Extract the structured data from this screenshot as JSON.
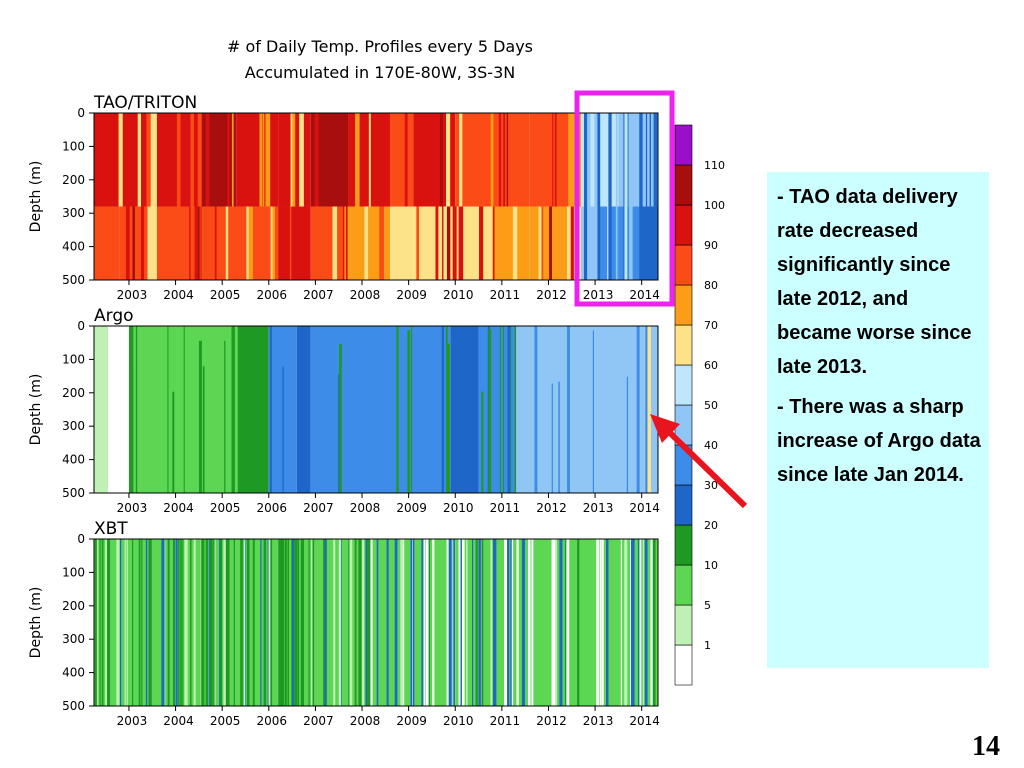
{
  "title_line1": "#  of Daily Temp. Profiles every 5 Days",
  "title_line2": "Accumulated in 170E-80W, 3S-3N",
  "notes": [
    "- TAO data delivery rate decreased significantly since late 2012, and became worse since late 2013.",
    "- There was a sharp increase of Argo data since late Jan 2014."
  ],
  "slide_number": "14",
  "colors": {
    "highlight_box": "#ee22ee",
    "arrow": "#e8141e",
    "note_background": "#ccffff"
  },
  "chart_data": [
    {
      "type": "heatmap",
      "title": "TAO/TRITON",
      "ylabel": "Depth (m)",
      "xlabel": "",
      "x_tick_labels": [
        "2003",
        "2004",
        "2005",
        "2006",
        "2007",
        "2008",
        "2009",
        "2010",
        "2011",
        "2012",
        "2013",
        "2014"
      ],
      "y_tick_labels": [
        "0",
        "100",
        "200",
        "300",
        "400",
        "500"
      ],
      "xlim": [
        2002.25,
        2014.35
      ],
      "ylim": [
        500,
        0
      ],
      "depth_break_m": 280,
      "segments_note": "approximate dominant profile-count bins (upper 0-280m / lower 280-500m) per period",
      "segments": [
        {
          "x0": 2002.25,
          "x1": 2002.8,
          "upper": 90,
          "lower": 80
        },
        {
          "x0": 2002.8,
          "x1": 2003.4,
          "upper": 90,
          "lower": 80
        },
        {
          "x0": 2003.4,
          "x1": 2003.6,
          "upper": 60,
          "lower": 60
        },
        {
          "x0": 2003.6,
          "x1": 2004.5,
          "upper": 90,
          "lower": 80
        },
        {
          "x0": 2004.5,
          "x1": 2005.3,
          "upper": 100,
          "lower": 80
        },
        {
          "x0": 2005.3,
          "x1": 2006.2,
          "upper": 90,
          "lower": 80
        },
        {
          "x0": 2006.2,
          "x1": 2006.9,
          "upper": 90,
          "lower": 90
        },
        {
          "x0": 2006.9,
          "x1": 2007.7,
          "upper": 100,
          "lower": 80
        },
        {
          "x0": 2007.7,
          "x1": 2008.6,
          "upper": 90,
          "lower": 70
        },
        {
          "x0": 2008.6,
          "x1": 2009.1,
          "upper": 80,
          "lower": 60
        },
        {
          "x0": 2009.1,
          "x1": 2010.0,
          "upper": 90,
          "lower": 60
        },
        {
          "x0": 2010.0,
          "x1": 2010.8,
          "upper": 80,
          "lower": 60
        },
        {
          "x0": 2010.8,
          "x1": 2011.6,
          "upper": 80,
          "lower": 70
        },
        {
          "x0": 2011.6,
          "x1": 2012.4,
          "upper": 80,
          "lower": 70
        },
        {
          "x0": 2012.4,
          "x1": 2012.7,
          "upper": 70,
          "lower": 60
        },
        {
          "x0": 2012.7,
          "x1": 2013.0,
          "upper": 50,
          "lower": 40
        },
        {
          "x0": 2013.0,
          "x1": 2013.5,
          "upper": 50,
          "lower": 30
        },
        {
          "x0": 2013.5,
          "x1": 2014.0,
          "upper": 40,
          "lower": 30
        },
        {
          "x0": 2014.0,
          "x1": 2014.35,
          "upper": 40,
          "lower": 20
        }
      ]
    },
    {
      "type": "heatmap",
      "title": "Argo",
      "ylabel": "Depth (m)",
      "xlabel": "",
      "x_tick_labels": [
        "2003",
        "2004",
        "2005",
        "2006",
        "2007",
        "2008",
        "2009",
        "2010",
        "2011",
        "2012",
        "2013",
        "2014"
      ],
      "y_tick_labels": [
        "0",
        "100",
        "200",
        "300",
        "400",
        "500"
      ],
      "xlim": [
        2002.25,
        2014.35
      ],
      "ylim": [
        500,
        0
      ],
      "segments_note": "approximate dominant profile-count bin per period (uniform with depth)",
      "segments": [
        {
          "x0": 2002.25,
          "x1": 2002.55,
          "value": 1
        },
        {
          "x0": 2002.55,
          "x1": 2003.0,
          "value": 0
        },
        {
          "x0": 2003.0,
          "x1": 2003.1,
          "value": 10
        },
        {
          "x0": 2003.1,
          "x1": 2005.2,
          "value": 5
        },
        {
          "x0": 2005.2,
          "x1": 2006.0,
          "value": 10
        },
        {
          "x0": 2006.0,
          "x1": 2006.6,
          "value": 30
        },
        {
          "x0": 2006.6,
          "x1": 2006.9,
          "value": 20
        },
        {
          "x0": 2006.9,
          "x1": 2009.9,
          "value": 30
        },
        {
          "x0": 2009.9,
          "x1": 2010.5,
          "value": 20
        },
        {
          "x0": 2010.5,
          "x1": 2011.3,
          "value": 30
        },
        {
          "x0": 2011.3,
          "x1": 2014.1,
          "value": 40
        },
        {
          "x0": 2014.1,
          "x1": 2014.2,
          "value": 60
        },
        {
          "x0": 2014.2,
          "x1": 2014.35,
          "value": 40
        }
      ]
    },
    {
      "type": "heatmap",
      "title": "XBT",
      "ylabel": "Depth (m)",
      "xlabel": "",
      "x_tick_labels": [
        "2003",
        "2004",
        "2005",
        "2006",
        "2007",
        "2008",
        "2009",
        "2010",
        "2011",
        "2012",
        "2013",
        "2014"
      ],
      "y_tick_labels": [
        "0",
        "100",
        "200",
        "300",
        "400",
        "500"
      ],
      "xlim": [
        2002.25,
        2014.35
      ],
      "ylim": [
        500,
        0
      ],
      "segments_note": "approximate dominant profile-count bin per period; mostly 5, increasingly sparse after 2008",
      "segments": [
        {
          "x0": 2002.25,
          "x1": 2008.0,
          "value": 5
        },
        {
          "x0": 2008.0,
          "x1": 2010.0,
          "value": 5
        },
        {
          "x0": 2010.0,
          "x1": 2012.0,
          "value": 5
        },
        {
          "x0": 2012.0,
          "x1": 2014.35,
          "value": 5
        }
      ]
    }
  ],
  "colorbar": {
    "tick_labels": [
      "1",
      "5",
      "10",
      "20",
      "30",
      "40",
      "50",
      "60",
      "70",
      "80",
      "90",
      "100",
      "110"
    ],
    "bins": [
      {
        "color": "#ffffff"
      },
      {
        "color": "#bff0b4"
      },
      {
        "color": "#5cd653"
      },
      {
        "color": "#1e9a24"
      },
      {
        "color": "#1f66c9"
      },
      {
        "color": "#3d8de8"
      },
      {
        "color": "#90c6f5"
      },
      {
        "color": "#bfe7fb"
      },
      {
        "color": "#fde288"
      },
      {
        "color": "#fb9d16"
      },
      {
        "color": "#fb4b16"
      },
      {
        "color": "#d9120f"
      },
      {
        "color": "#a90e0f"
      },
      {
        "color": "#9a10c8"
      }
    ]
  }
}
